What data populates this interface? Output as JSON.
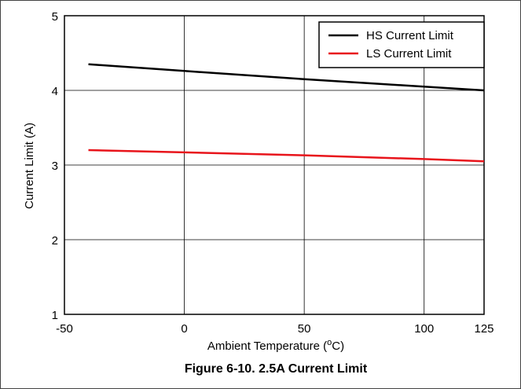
{
  "chart_data": {
    "type": "line",
    "title": "",
    "caption": "Figure 6-10. 2.5A Current Limit",
    "xlabel": "Ambient Temperature (",
    "xlabel_sup": "o",
    "xlabel_tail": "C)",
    "ylabel": "Current Limit (A)",
    "xlim": [
      -50,
      125
    ],
    "ylim": [
      1,
      5
    ],
    "xticks": [
      -50,
      0,
      50,
      100,
      125
    ],
    "xtick_labels": [
      "-50",
      "0",
      "50",
      "100",
      "125"
    ],
    "gridlines_x": [
      0,
      50,
      100
    ],
    "yticks": [
      1,
      2,
      3,
      4,
      5
    ],
    "ytick_labels": [
      "1",
      "2",
      "3",
      "4",
      "5"
    ],
    "grid": true,
    "legend_position": "top-right",
    "series": [
      {
        "name": "HS Current Limit",
        "color": "#000000",
        "x": [
          -40,
          0,
          50,
          100,
          125
        ],
        "y": [
          4.35,
          4.26,
          4.15,
          4.05,
          4.0
        ]
      },
      {
        "name": "LS Current Limit",
        "color": "#e8141b",
        "x": [
          -40,
          0,
          50,
          100,
          125
        ],
        "y": [
          3.2,
          3.17,
          3.13,
          3.08,
          3.05
        ]
      }
    ]
  }
}
